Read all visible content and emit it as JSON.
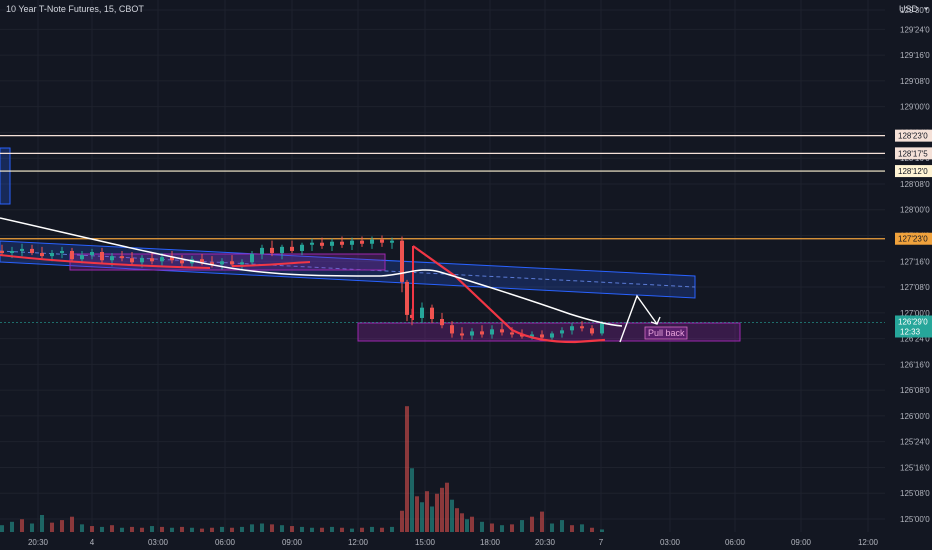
{
  "chart_data": {
    "type": "candlestick",
    "title": "10 Year T-Note Futures, 15, CBOT",
    "currency": "USD",
    "y_ticks": [
      {
        "v": 129.9375,
        "label": "129'30'0"
      },
      {
        "v": 129.75,
        "label": "129'24'0"
      },
      {
        "v": 129.5,
        "label": "129'16'0"
      },
      {
        "v": 129.25,
        "label": "129'08'0"
      },
      {
        "v": 129.0,
        "label": "129'00'0"
      },
      {
        "v": 128.75,
        "label": "128'24'0"
      },
      {
        "v": 128.5,
        "label": "128'16'0"
      },
      {
        "v": 128.25,
        "label": "128'08'0"
      },
      {
        "v": 128.0,
        "label": "128'00'0"
      },
      {
        "v": 127.75,
        "label": "127'24'0"
      },
      {
        "v": 127.5,
        "label": "127'16'0"
      },
      {
        "v": 127.25,
        "label": "127'08'0"
      },
      {
        "v": 127.0,
        "label": "127'00'0"
      },
      {
        "v": 126.75,
        "label": "126'24'0"
      },
      {
        "v": 126.5,
        "label": "126'16'0"
      },
      {
        "v": 126.25,
        "label": "126'08'0"
      },
      {
        "v": 126.0,
        "label": "126'00'0"
      },
      {
        "v": 125.75,
        "label": "125'24'0"
      },
      {
        "v": 125.5,
        "label": "125'16'0"
      },
      {
        "v": 125.25,
        "label": "125'08'0"
      },
      {
        "v": 125.0,
        "label": "125'00'0"
      }
    ],
    "x_ticks": [
      "20:30",
      "4",
      "03:00",
      "06:00",
      "09:00",
      "12:00",
      "15:00",
      "18:00",
      "20:30",
      "7",
      "03:00",
      "06:00",
      "09:00",
      "12:00"
    ],
    "horizontal_levels": [
      {
        "v": 128.71875,
        "label": "128'23'0",
        "color": "#f5e1d8"
      },
      {
        "v": 128.546875,
        "label": "128'17'5",
        "color": "#f5e1d8"
      },
      {
        "v": 128.375,
        "label": "128'12'0",
        "color": "#fff4d4"
      },
      {
        "v": 127.71875,
        "label": "127'23'0",
        "color": "#f0a23c"
      }
    ],
    "current_price": {
      "v": 126.90625,
      "label": "126'29'0",
      "countdown": "12:33",
      "color": "#26a69a"
    },
    "candles": [
      {
        "i": 0,
        "o": 127.6,
        "h": 127.66,
        "l": 127.55,
        "c": 127.58
      },
      {
        "i": 2,
        "o": 127.58,
        "h": 127.64,
        "l": 127.53,
        "c": 127.6
      },
      {
        "i": 4,
        "o": 127.6,
        "h": 127.67,
        "l": 127.55,
        "c": 127.62
      },
      {
        "i": 6,
        "o": 127.62,
        "h": 127.66,
        "l": 127.56,
        "c": 127.58
      },
      {
        "i": 8,
        "o": 127.58,
        "h": 127.64,
        "l": 127.53,
        "c": 127.55
      },
      {
        "i": 10,
        "o": 127.55,
        "h": 127.61,
        "l": 127.5,
        "c": 127.58
      },
      {
        "i": 12,
        "o": 127.58,
        "h": 127.64,
        "l": 127.53,
        "c": 127.6
      },
      {
        "i": 14,
        "o": 127.6,
        "h": 127.63,
        "l": 127.49,
        "c": 127.52
      },
      {
        "i": 16,
        "o": 127.52,
        "h": 127.6,
        "l": 127.48,
        "c": 127.56
      },
      {
        "i": 18,
        "o": 127.56,
        "h": 127.62,
        "l": 127.52,
        "c": 127.59
      },
      {
        "i": 20,
        "o": 127.59,
        "h": 127.63,
        "l": 127.48,
        "c": 127.51
      },
      {
        "i": 22,
        "o": 127.51,
        "h": 127.58,
        "l": 127.45,
        "c": 127.55
      },
      {
        "i": 24,
        "o": 127.55,
        "h": 127.6,
        "l": 127.5,
        "c": 127.53
      },
      {
        "i": 26,
        "o": 127.53,
        "h": 127.59,
        "l": 127.46,
        "c": 127.49
      },
      {
        "i": 28,
        "o": 127.49,
        "h": 127.56,
        "l": 127.44,
        "c": 127.53
      },
      {
        "i": 30,
        "o": 127.53,
        "h": 127.58,
        "l": 127.47,
        "c": 127.5
      },
      {
        "i": 32,
        "o": 127.5,
        "h": 127.58,
        "l": 127.46,
        "c": 127.54
      },
      {
        "i": 34,
        "o": 127.54,
        "h": 127.6,
        "l": 127.48,
        "c": 127.51
      },
      {
        "i": 36,
        "o": 127.51,
        "h": 127.56,
        "l": 127.44,
        "c": 127.48
      },
      {
        "i": 38,
        "o": 127.48,
        "h": 127.55,
        "l": 127.43,
        "c": 127.52
      },
      {
        "i": 40,
        "o": 127.52,
        "h": 127.57,
        "l": 127.46,
        "c": 127.49
      },
      {
        "i": 42,
        "o": 127.49,
        "h": 127.55,
        "l": 127.44,
        "c": 127.47
      },
      {
        "i": 44,
        "o": 127.47,
        "h": 127.53,
        "l": 127.42,
        "c": 127.5
      },
      {
        "i": 46,
        "o": 127.5,
        "h": 127.56,
        "l": 127.45,
        "c": 127.47
      },
      {
        "i": 48,
        "o": 127.47,
        "h": 127.52,
        "l": 127.42,
        "c": 127.49
      },
      {
        "i": 50,
        "o": 127.49,
        "h": 127.6,
        "l": 127.45,
        "c": 127.57
      },
      {
        "i": 52,
        "o": 127.57,
        "h": 127.66,
        "l": 127.52,
        "c": 127.63
      },
      {
        "i": 54,
        "o": 127.63,
        "h": 127.7,
        "l": 127.55,
        "c": 127.58
      },
      {
        "i": 56,
        "o": 127.58,
        "h": 127.66,
        "l": 127.52,
        "c": 127.64
      },
      {
        "i": 58,
        "o": 127.64,
        "h": 127.7,
        "l": 127.58,
        "c": 127.6
      },
      {
        "i": 60,
        "o": 127.6,
        "h": 127.68,
        "l": 127.56,
        "c": 127.66
      },
      {
        "i": 62,
        "o": 127.66,
        "h": 127.72,
        "l": 127.6,
        "c": 127.68
      },
      {
        "i": 64,
        "o": 127.68,
        "h": 127.73,
        "l": 127.62,
        "c": 127.65
      },
      {
        "i": 66,
        "o": 127.65,
        "h": 127.72,
        "l": 127.6,
        "c": 127.69
      },
      {
        "i": 68,
        "o": 127.69,
        "h": 127.74,
        "l": 127.63,
        "c": 127.66
      },
      {
        "i": 70,
        "o": 127.66,
        "h": 127.73,
        "l": 127.61,
        "c": 127.7
      },
      {
        "i": 72,
        "o": 127.7,
        "h": 127.74,
        "l": 127.64,
        "c": 127.67
      },
      {
        "i": 74,
        "o": 127.67,
        "h": 127.74,
        "l": 127.62,
        "c": 127.71
      },
      {
        "i": 76,
        "o": 127.71,
        "h": 127.75,
        "l": 127.64,
        "c": 127.68
      },
      {
        "i": 78,
        "o": 127.68,
        "h": 127.73,
        "l": 127.62,
        "c": 127.7
      },
      {
        "i": 80,
        "o": 127.7,
        "h": 127.74,
        "l": 127.2,
        "c": 127.3
      },
      {
        "i": 81,
        "o": 127.3,
        "h": 127.32,
        "l": 126.92,
        "c": 126.98
      },
      {
        "i": 82,
        "o": 126.98,
        "h": 127.04,
        "l": 126.88,
        "c": 126.95
      },
      {
        "i": 84,
        "o": 126.95,
        "h": 127.1,
        "l": 126.9,
        "c": 127.05
      },
      {
        "i": 86,
        "o": 127.05,
        "h": 127.08,
        "l": 126.9,
        "c": 126.94
      },
      {
        "i": 88,
        "o": 126.94,
        "h": 127.0,
        "l": 126.85,
        "c": 126.88
      },
      {
        "i": 90,
        "o": 126.88,
        "h": 126.92,
        "l": 126.76,
        "c": 126.8
      },
      {
        "i": 92,
        "o": 126.8,
        "h": 126.86,
        "l": 126.74,
        "c": 126.78
      },
      {
        "i": 94,
        "o": 126.78,
        "h": 126.85,
        "l": 126.74,
        "c": 126.82
      },
      {
        "i": 96,
        "o": 126.82,
        "h": 126.88,
        "l": 126.76,
        "c": 126.79
      },
      {
        "i": 98,
        "o": 126.79,
        "h": 126.88,
        "l": 126.75,
        "c": 126.84
      },
      {
        "i": 100,
        "o": 126.84,
        "h": 126.9,
        "l": 126.78,
        "c": 126.81
      },
      {
        "i": 102,
        "o": 126.81,
        "h": 126.86,
        "l": 126.76,
        "c": 126.79
      },
      {
        "i": 104,
        "o": 126.79,
        "h": 126.84,
        "l": 126.75,
        "c": 126.77
      },
      {
        "i": 106,
        "o": 126.77,
        "h": 126.82,
        "l": 126.74,
        "c": 126.79
      },
      {
        "i": 108,
        "o": 126.79,
        "h": 126.83,
        "l": 126.74,
        "c": 126.76
      },
      {
        "i": 110,
        "o": 126.76,
        "h": 126.82,
        "l": 126.74,
        "c": 126.8
      },
      {
        "i": 112,
        "o": 126.8,
        "h": 126.86,
        "l": 126.76,
        "c": 126.83
      },
      {
        "i": 114,
        "o": 126.83,
        "h": 126.9,
        "l": 126.79,
        "c": 126.87
      },
      {
        "i": 116,
        "o": 126.87,
        "h": 126.92,
        "l": 126.82,
        "c": 126.85
      },
      {
        "i": 118,
        "o": 126.85,
        "h": 126.88,
        "l": 126.78,
        "c": 126.8
      },
      {
        "i": 120,
        "o": 126.8,
        "h": 126.92,
        "l": 126.78,
        "c": 126.9
      }
    ],
    "volume": [
      {
        "i": 0,
        "v": 8,
        "up": true
      },
      {
        "i": 2,
        "v": 12,
        "up": true
      },
      {
        "i": 4,
        "v": 15,
        "up": false
      },
      {
        "i": 6,
        "v": 10,
        "up": true
      },
      {
        "i": 8,
        "v": 20,
        "up": true
      },
      {
        "i": 10,
        "v": 11,
        "up": false
      },
      {
        "i": 12,
        "v": 14,
        "up": false
      },
      {
        "i": 14,
        "v": 18,
        "up": false
      },
      {
        "i": 16,
        "v": 9,
        "up": true
      },
      {
        "i": 18,
        "v": 7,
        "up": false
      },
      {
        "i": 20,
        "v": 6,
        "up": true
      },
      {
        "i": 22,
        "v": 8,
        "up": false
      },
      {
        "i": 24,
        "v": 5,
        "up": true
      },
      {
        "i": 26,
        "v": 6,
        "up": false
      },
      {
        "i": 28,
        "v": 5,
        "up": false
      },
      {
        "i": 30,
        "v": 7,
        "up": true
      },
      {
        "i": 32,
        "v": 6,
        "up": false
      },
      {
        "i": 34,
        "v": 5,
        "up": true
      },
      {
        "i": 36,
        "v": 6,
        "up": false
      },
      {
        "i": 38,
        "v": 5,
        "up": true
      },
      {
        "i": 40,
        "v": 4,
        "up": false
      },
      {
        "i": 42,
        "v": 5,
        "up": false
      },
      {
        "i": 44,
        "v": 6,
        "up": true
      },
      {
        "i": 46,
        "v": 5,
        "up": false
      },
      {
        "i": 48,
        "v": 6,
        "up": true
      },
      {
        "i": 50,
        "v": 9,
        "up": true
      },
      {
        "i": 52,
        "v": 10,
        "up": true
      },
      {
        "i": 54,
        "v": 9,
        "up": false
      },
      {
        "i": 56,
        "v": 8,
        "up": true
      },
      {
        "i": 58,
        "v": 7,
        "up": false
      },
      {
        "i": 60,
        "v": 6,
        "up": true
      },
      {
        "i": 62,
        "v": 5,
        "up": true
      },
      {
        "i": 64,
        "v": 5,
        "up": false
      },
      {
        "i": 66,
        "v": 6,
        "up": true
      },
      {
        "i": 68,
        "v": 5,
        "up": false
      },
      {
        "i": 70,
        "v": 4,
        "up": true
      },
      {
        "i": 72,
        "v": 5,
        "up": false
      },
      {
        "i": 74,
        "v": 6,
        "up": true
      },
      {
        "i": 76,
        "v": 5,
        "up": false
      },
      {
        "i": 78,
        "v": 6,
        "up": true
      },
      {
        "i": 80,
        "v": 25,
        "up": false
      },
      {
        "i": 81,
        "v": 148,
        "up": false
      },
      {
        "i": 82,
        "v": 75,
        "up": true
      },
      {
        "i": 83,
        "v": 42,
        "up": false
      },
      {
        "i": 84,
        "v": 35,
        "up": true
      },
      {
        "i": 85,
        "v": 48,
        "up": false
      },
      {
        "i": 86,
        "v": 30,
        "up": true
      },
      {
        "i": 87,
        "v": 45,
        "up": false
      },
      {
        "i": 88,
        "v": 52,
        "up": false
      },
      {
        "i": 89,
        "v": 58,
        "up": false
      },
      {
        "i": 90,
        "v": 38,
        "up": true
      },
      {
        "i": 91,
        "v": 28,
        "up": false
      },
      {
        "i": 92,
        "v": 22,
        "up": false
      },
      {
        "i": 93,
        "v": 15,
        "up": true
      },
      {
        "i": 94,
        "v": 18,
        "up": false
      },
      {
        "i": 96,
        "v": 12,
        "up": true
      },
      {
        "i": 98,
        "v": 10,
        "up": false
      },
      {
        "i": 100,
        "v": 8,
        "up": true
      },
      {
        "i": 102,
        "v": 9,
        "up": false
      },
      {
        "i": 104,
        "v": 14,
        "up": true
      },
      {
        "i": 106,
        "v": 18,
        "up": false
      },
      {
        "i": 108,
        "v": 24,
        "up": false
      },
      {
        "i": 110,
        "v": 10,
        "up": true
      },
      {
        "i": 112,
        "v": 14,
        "up": true
      },
      {
        "i": 114,
        "v": 8,
        "up": false
      },
      {
        "i": 116,
        "v": 9,
        "up": true
      },
      {
        "i": 118,
        "v": 5,
        "up": false
      },
      {
        "i": 120,
        "v": 3,
        "up": true
      }
    ],
    "annotation": {
      "text": "Pull back"
    },
    "colors": {
      "up": "#26a69a",
      "down": "#ef5350",
      "background": "#131722",
      "grid": "#1e222d",
      "channel": "#2962ff",
      "zone": "#9c27b0",
      "red_curve": "#f23645",
      "moving_average": "#ffffff"
    }
  }
}
